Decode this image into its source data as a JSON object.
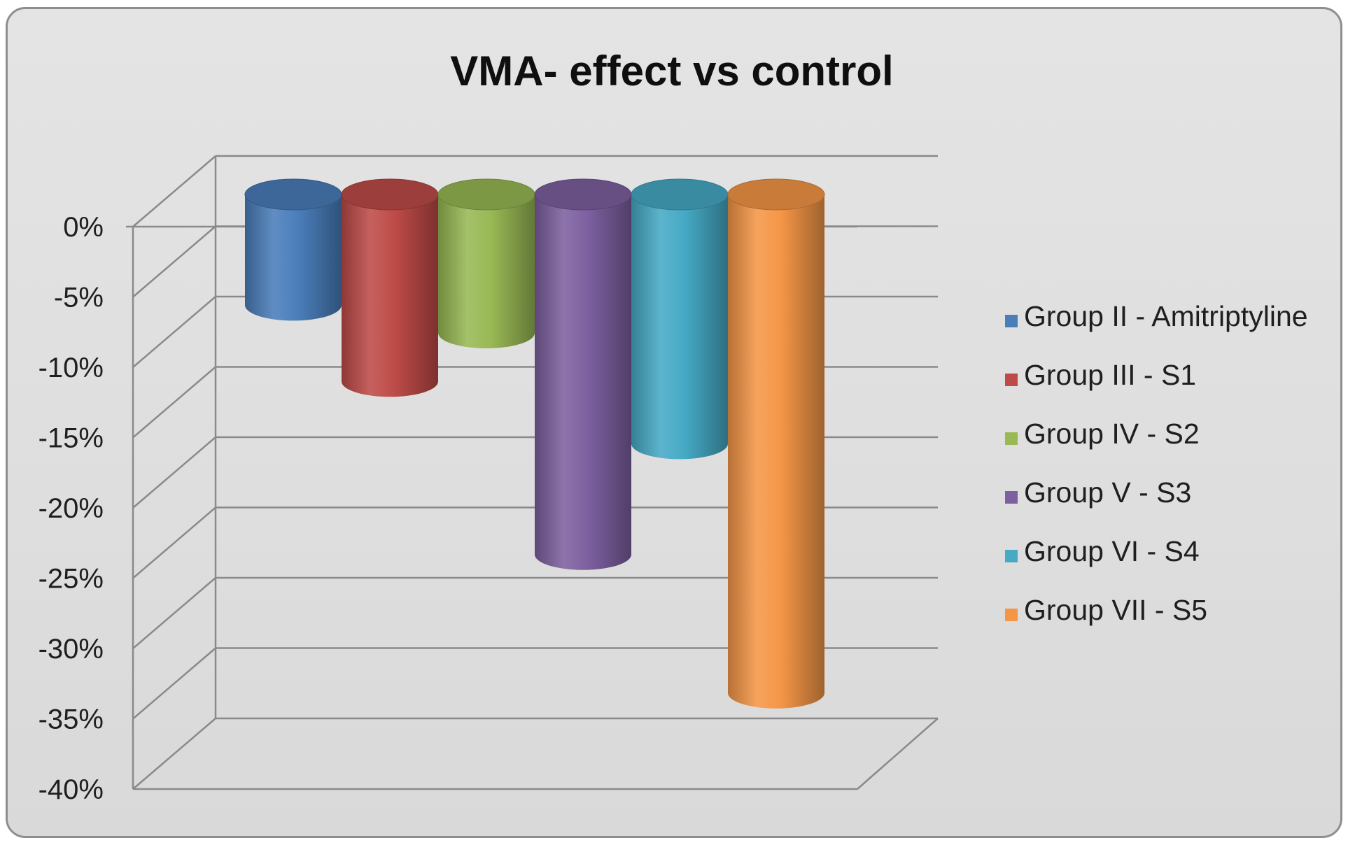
{
  "chart_data": {
    "type": "bar",
    "title": "VMA- effect vs control",
    "xlabel": "",
    "ylabel": "",
    "ylim": [
      -40,
      0
    ],
    "yticks": [
      "0%",
      "-5%",
      "-10%",
      "-15%",
      "-20%",
      "-25%",
      "-30%",
      "-35%",
      "-40%"
    ],
    "categories": [
      "Group II - Amitriptyline",
      "Group III -  S1",
      "Group IV -  S2",
      "Group V - S3",
      "Group VI -  S4",
      "Group VII -  S5"
    ],
    "values": [
      -8,
      -13.5,
      -10,
      -26,
      -18,
      -36
    ],
    "grid": true,
    "legend_position": "right",
    "colors": [
      "#4a7ebb",
      "#be4b48",
      "#98b954",
      "#7d60a0",
      "#46aac5",
      "#f59647"
    ]
  }
}
